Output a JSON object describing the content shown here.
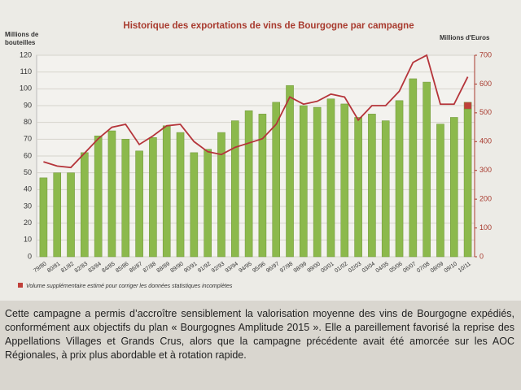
{
  "chart_data": {
    "type": "bar",
    "title": "Historique des exportations de vins de Bourgogne par campagne",
    "ylabel": "Millions de bouteilles",
    "y2label": "Millions d'Euros",
    "categories": [
      "79/80",
      "80/81",
      "81/82",
      "82/83",
      "83/84",
      "84/85",
      "85/86",
      "86/87",
      "87/88",
      "88/89",
      "89/90",
      "90/91",
      "91/92",
      "92/93",
      "93/94",
      "94/95",
      "95/96",
      "96/97",
      "97/98",
      "98/99",
      "99/00",
      "00/01",
      "01/02",
      "02/03",
      "03/04",
      "04/05",
      "05/06",
      "06/07",
      "07/08",
      "08/09",
      "09/10",
      "10/11"
    ],
    "series": [
      {
        "color": "#8cb94c",
        "values": [
          47,
          50,
          50,
          62,
          72,
          75,
          70,
          63,
          71,
          78,
          74,
          62,
          64,
          74,
          81,
          87,
          85,
          92,
          102,
          90,
          89,
          94,
          91,
          83,
          85,
          81,
          93,
          106,
          104,
          79,
          83,
          88
        ]
      },
      {
        "name": "Volume supplémentaire estimé pour corriger les données statistiques incomplètes",
        "color": "#c0403a",
        "values": [
          null,
          null,
          null,
          null,
          null,
          null,
          null,
          null,
          null,
          null,
          null,
          null,
          null,
          null,
          null,
          null,
          null,
          null,
          null,
          null,
          null,
          null,
          null,
          null,
          null,
          null,
          null,
          null,
          null,
          null,
          null,
          4
        ]
      },
      {
        "type": "line",
        "axis": "y2",
        "color": "#b5343a",
        "values": [
          330,
          315,
          310,
          360,
          410,
          450,
          460,
          390,
          420,
          455,
          460,
          400,
          365,
          355,
          380,
          395,
          410,
          460,
          555,
          530,
          540,
          565,
          555,
          475,
          525,
          525,
          575,
          675,
          700,
          530,
          530,
          625
        ]
      }
    ],
    "ylim": [
      0,
      120
    ],
    "yticks": [
      0,
      10,
      20,
      30,
      40,
      50,
      60,
      70,
      80,
      90,
      100,
      110,
      120
    ],
    "y2lim": [
      0,
      700
    ],
    "y2ticks": [
      0,
      100,
      200,
      300,
      400,
      500,
      600,
      700
    ],
    "grid": true
  },
  "document": {
    "paragraph": "Cette campagne a permis d’accroître sensiblement la valorisation moyenne des vins de Bourgogne expédiés, conformément aux objectifs du plan « Bourgognes Amplitude 2015 ». Elle a pareillement favorisé la reprise des Appellations Villages et Grands Crus, alors que la campagne précédente avait été amorcée sur les AOC Régionales, à prix plus abordable et à rotation rapide."
  }
}
